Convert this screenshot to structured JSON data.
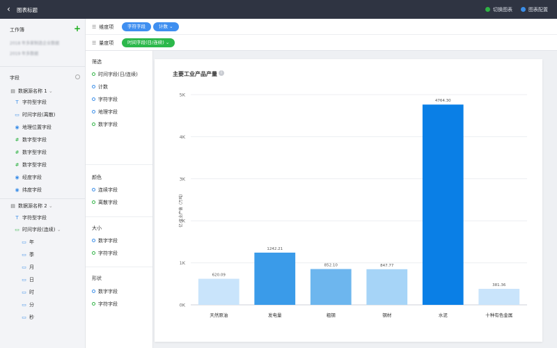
{
  "header": {
    "title": "图表标题",
    "switch_chart": "切换图表",
    "chart_config": "图表配置"
  },
  "sidebar": {
    "workbook_label": "工作簿",
    "blurred_1": "2018 年多家制造企业数据",
    "blurred_2": "2019 年多数据",
    "field_label": "字段",
    "source1": {
      "name": "数据源名称 1",
      "items": [
        {
          "icon": "T",
          "label": "字符型字段"
        },
        {
          "icon": "calendar",
          "label": "时间字段(离散)"
        },
        {
          "icon": "pin",
          "label": "地理位置字段"
        },
        {
          "icon": "#",
          "label": "数字型字段"
        },
        {
          "icon": "#",
          "label": "数字型字段"
        },
        {
          "icon": "#",
          "label": "数字型字段"
        },
        {
          "icon": "pin",
          "label": "经度字段"
        },
        {
          "icon": "pin",
          "label": "纬度字段"
        }
      ]
    },
    "source2": {
      "name": "数据源名称 2",
      "items": [
        {
          "icon": "T",
          "label": "字符型字段"
        },
        {
          "icon": "calendar",
          "label": "时间字段(连续)"
        }
      ],
      "time_children": [
        "年",
        "季",
        "月",
        "日",
        "时",
        "分",
        "秒"
      ]
    }
  },
  "fieldpanel": {
    "dimension_label": "维度项",
    "dimension_pills": [
      "字符字段",
      "计数"
    ],
    "measure_label": "量度项",
    "measure_pill": "时间字段(日/连续)"
  },
  "shelf": {
    "filter": {
      "title": "筛选",
      "items": [
        "时间字段(日/连续)",
        "计数",
        "字符字段",
        "地理字段",
        "数字字段"
      ]
    },
    "color": {
      "title": "颜色",
      "items": [
        "连续字段",
        "离散字段"
      ]
    },
    "size": {
      "title": "大小",
      "items": [
        "数字字段",
        "字符字段"
      ]
    },
    "shape": {
      "title": "形状",
      "items": [
        "数字字段",
        "字符字段"
      ]
    }
  },
  "chart_data": {
    "type": "bar",
    "title": "主要工业产品产量",
    "ylabel": "工业产值（万吨）",
    "ylabel_mark": "亿",
    "categories": [
      "天然原油",
      "发电量",
      "粗钢",
      "钢材",
      "水泥",
      "十种有色金属"
    ],
    "values": [
      620.09,
      1242.21,
      852.1,
      847.77,
      4764.3,
      381.36
    ],
    "value_labels": [
      "620.09",
      "1242.21",
      "852.10",
      "847.77",
      "4764.30",
      "381.36"
    ],
    "yticks": [
      "0K",
      "1K",
      "2K",
      "3K",
      "4K",
      "5K"
    ],
    "ylim": [
      0,
      5000
    ],
    "colors": [
      "#c9e4fb",
      "#3a9be9",
      "#6db6ee",
      "#a6d4f7",
      "#0a7fe6",
      "#c9e4fb"
    ],
    "grid": true
  }
}
